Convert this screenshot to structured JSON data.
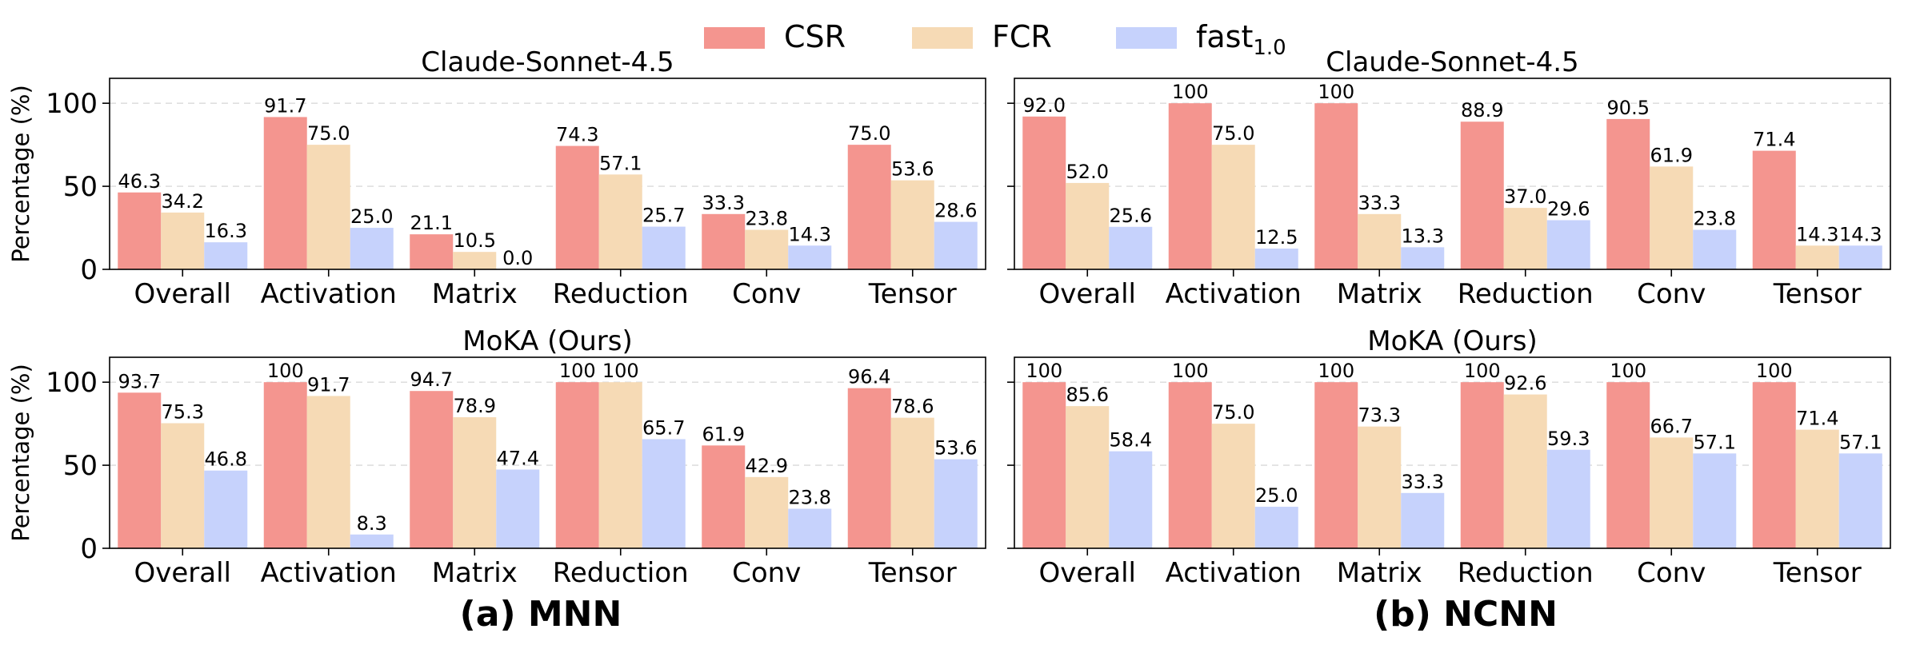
{
  "legend": {
    "entries": [
      {
        "label": "CSR",
        "sub": "",
        "color": "#f4958f"
      },
      {
        "label": "FCR",
        "sub": "",
        "color": "#f6dab5"
      },
      {
        "label": "fast",
        "sub": "1.0",
        "color": "#c6d2fc"
      }
    ]
  },
  "captions": {
    "a": "(a) MNN",
    "b": "(b) NCNN"
  },
  "chart_data": [
    {
      "id": "mnn-claude",
      "type": "bar",
      "title": "Claude-Sonnet-4.5",
      "ylabel": "Percentage (%)",
      "ylim": [
        0,
        115
      ],
      "yticks": [
        0,
        50,
        100
      ],
      "grid": true,
      "categories": [
        "Overall",
        "Activation",
        "Matrix",
        "Reduction",
        "Conv",
        "Tensor"
      ],
      "series": [
        {
          "name": "CSR",
          "values": [
            46.3,
            91.7,
            21.1,
            74.3,
            33.3,
            75.0
          ],
          "labels": [
            "46.3",
            "91.7",
            "21.1",
            "74.3",
            "33.3",
            "75.0"
          ]
        },
        {
          "name": "FCR",
          "values": [
            34.2,
            75.0,
            10.5,
            57.1,
            23.8,
            53.6
          ],
          "labels": [
            "34.2",
            "75.0",
            "10.5",
            "57.1",
            "23.8",
            "53.6"
          ]
        },
        {
          "name": "fast1.0",
          "values": [
            16.3,
            25.0,
            0.0,
            25.7,
            14.3,
            28.6
          ],
          "labels": [
            "16.3",
            "25.0",
            "0.0",
            "25.7",
            "14.3",
            "28.6"
          ]
        }
      ]
    },
    {
      "id": "ncnn-claude",
      "type": "bar",
      "title": "Claude-Sonnet-4.5",
      "ylabel": "",
      "ylim": [
        0,
        115
      ],
      "yticks": [
        0,
        50,
        100
      ],
      "grid": true,
      "categories": [
        "Overall",
        "Activation",
        "Matrix",
        "Reduction",
        "Conv",
        "Tensor"
      ],
      "series": [
        {
          "name": "CSR",
          "values": [
            92.0,
            100,
            100,
            88.9,
            90.5,
            71.4
          ],
          "labels": [
            "92.0",
            "100",
            "100",
            "88.9",
            "90.5",
            "71.4"
          ]
        },
        {
          "name": "FCR",
          "values": [
            52.0,
            75.0,
            33.3,
            37.0,
            61.9,
            14.3
          ],
          "labels": [
            "52.0",
            "75.0",
            "33.3",
            "37.0",
            "61.9",
            "14.3"
          ]
        },
        {
          "name": "fast1.0",
          "values": [
            25.6,
            12.5,
            13.3,
            29.6,
            23.8,
            14.3
          ],
          "labels": [
            "25.6",
            "12.5",
            "13.3",
            "29.6",
            "23.8",
            "14.3"
          ]
        }
      ]
    },
    {
      "id": "mnn-moka",
      "type": "bar",
      "title": "MoKA (Ours)",
      "ylabel": "Percentage (%)",
      "ylim": [
        0,
        115
      ],
      "yticks": [
        0,
        50,
        100
      ],
      "grid": true,
      "categories": [
        "Overall",
        "Activation",
        "Matrix",
        "Reduction",
        "Conv",
        "Tensor"
      ],
      "series": [
        {
          "name": "CSR",
          "values": [
            93.7,
            100,
            94.7,
            100,
            61.9,
            96.4
          ],
          "labels": [
            "93.7",
            "100",
            "94.7",
            "100",
            "61.9",
            "96.4"
          ]
        },
        {
          "name": "FCR",
          "values": [
            75.3,
            91.7,
            78.9,
            100,
            42.9,
            78.6
          ],
          "labels": [
            "75.3",
            "91.7",
            "78.9",
            "100",
            "42.9",
            "78.6"
          ]
        },
        {
          "name": "fast1.0",
          "values": [
            46.8,
            8.3,
            47.4,
            65.7,
            23.8,
            53.6
          ],
          "labels": [
            "46.8",
            "8.3",
            "47.4",
            "65.7",
            "23.8",
            "53.6"
          ]
        }
      ]
    },
    {
      "id": "ncnn-moka",
      "type": "bar",
      "title": "MoKA (Ours)",
      "ylabel": "",
      "ylim": [
        0,
        115
      ],
      "yticks": [
        0,
        50,
        100
      ],
      "grid": true,
      "categories": [
        "Overall",
        "Activation",
        "Matrix",
        "Reduction",
        "Conv",
        "Tensor"
      ],
      "series": [
        {
          "name": "CSR",
          "values": [
            100,
            100,
            100,
            100,
            100,
            100
          ],
          "labels": [
            "100",
            "100",
            "100",
            "100",
            "100",
            "100"
          ]
        },
        {
          "name": "FCR",
          "values": [
            85.6,
            75.0,
            73.3,
            92.6,
            66.7,
            71.4
          ],
          "labels": [
            "85.6",
            "75.0",
            "73.3",
            "92.6",
            "66.7",
            "71.4"
          ]
        },
        {
          "name": "fast1.0",
          "values": [
            58.4,
            25.0,
            33.3,
            59.3,
            57.1,
            57.1
          ],
          "labels": [
            "58.4",
            "25.0",
            "33.3",
            "59.3",
            "57.1",
            "57.1"
          ]
        }
      ]
    }
  ]
}
